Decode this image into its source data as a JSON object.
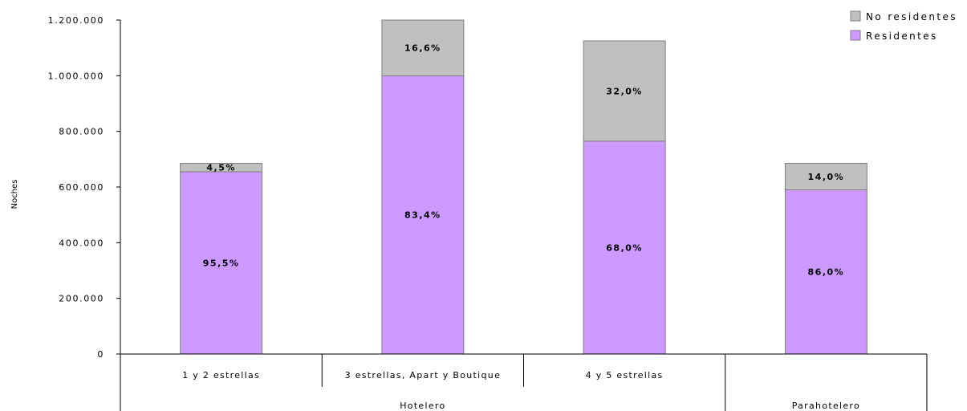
{
  "chart_data": {
    "type": "bar",
    "stacked": true,
    "ylabel": "Noches",
    "ylim": [
      0,
      1200000
    ],
    "yticks": [
      "0",
      "200.000",
      "400.000",
      "600.000",
      "800.000",
      "1.000.000",
      "1.200.000"
    ],
    "ytick_values": [
      0,
      200000,
      400000,
      600000,
      800000,
      1000000,
      1200000
    ],
    "categories": [
      "1 y 2 estrellas",
      "3 estrellas, Apart y Boutique",
      "4 y 5 estrellas",
      ""
    ],
    "groups": [
      {
        "label": "Hotelero",
        "span": 3
      },
      {
        "label": "Parahotelero",
        "span": 1
      }
    ],
    "series": [
      {
        "name": "Residentes",
        "color": "#cc99ff",
        "values": [
          655000,
          1000000,
          765000,
          590000
        ],
        "labels": [
          "95,5%",
          "83,4%",
          "68,0%",
          "86,0%"
        ]
      },
      {
        "name": "No residentes",
        "color": "#c0c0c0",
        "values": [
          30000,
          200000,
          360000,
          95000
        ],
        "labels": [
          "4,5%",
          "16,6%",
          "32,0%",
          "14,0%"
        ]
      }
    ],
    "legend": {
      "position": "top-right",
      "order": [
        "No residentes",
        "Residentes"
      ]
    },
    "grid": false
  }
}
